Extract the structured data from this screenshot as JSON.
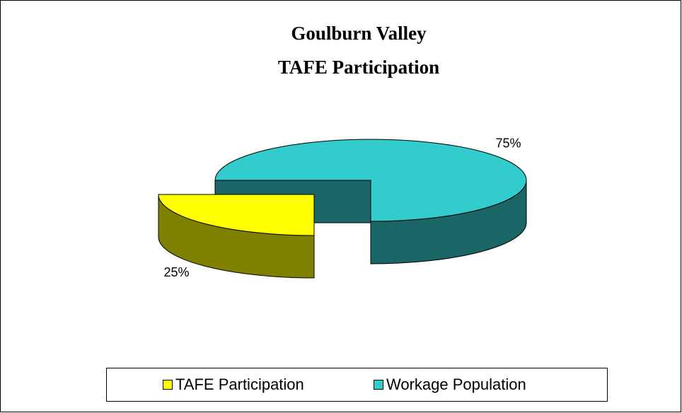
{
  "chart_data": {
    "type": "pie3d",
    "title": [
      "Goulburn Valley",
      "TAFE Participation"
    ],
    "categories": [
      "TAFE Participation",
      "Workage Population"
    ],
    "values": [
      25,
      75
    ],
    "value_labels": [
      "25%",
      "75%"
    ],
    "colors": [
      "#ffff00",
      "#33cccc"
    ],
    "legend": "bottom"
  }
}
